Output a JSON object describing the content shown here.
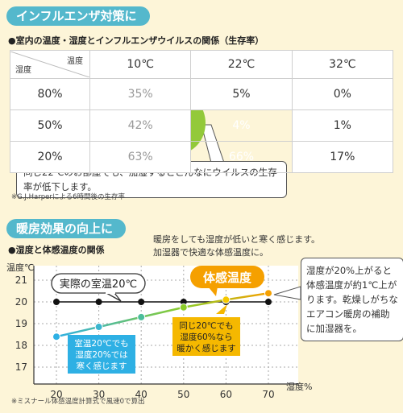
{
  "section1": {
    "heading": "インフルエンザ対策に",
    "subtitle": "●室内の温度・湿度とインフルエンザウイルスの関係（生存率）",
    "corner_top": "温度",
    "corner_bottom": "湿度",
    "columns": [
      "10℃",
      "22℃",
      "32℃"
    ],
    "rows": [
      {
        "label": "80%",
        "cells": [
          "35%",
          "5%",
          "0%"
        ]
      },
      {
        "label": "50%",
        "cells": [
          "42%",
          "4%",
          "1%"
        ]
      },
      {
        "label": "20%",
        "cells": [
          "63%",
          "66%",
          "17%"
        ]
      }
    ],
    "callout": "同じ22℃のお部屋でも、加湿するとこんなにウイルスの生存率が低下します。",
    "footnote": "※G.J.Harperによる6時間後の生存率"
  },
  "section2": {
    "heading": "暖房効果の向上に",
    "subtitle": "●湿度と体感温度の関係",
    "top_note": [
      "暖房をしても湿度が低いと寒く感じます。",
      "加湿器で快適な体感温度に。"
    ],
    "right_note": "湿度が20%上がると体感温度が約1℃上がります。乾燥しがちなエアコン暖房の補助に加湿器を。",
    "label_actual": "実際の室温20℃",
    "label_felt": "体感温度",
    "box_left": [
      "室温20℃でも",
      "湿度20%では",
      "寒く感じます"
    ],
    "box_mid": [
      "同じ20℃でも",
      "湿度60%なら",
      "暖かく感じます"
    ],
    "footnote": "※ミスナール体感温度計算式で風速0で算出",
    "colors": {
      "felt_line_start": "#2eb0e4",
      "felt_line_end": "#f5a000",
      "actual_line": "#111111"
    }
  },
  "chart_data": {
    "type": "line",
    "xlabel": "湿度%",
    "ylabel": "温度℃",
    "x": [
      20,
      30,
      40,
      50,
      60,
      70
    ],
    "xlim": [
      20,
      70
    ],
    "ylim": [
      17,
      21
    ],
    "yticks": [
      17,
      18,
      19,
      20,
      21
    ],
    "series": [
      {
        "values": [
          20,
          20,
          20,
          20,
          20,
          20
        ]
      },
      {
        "name": "体感温度",
        "values": [
          18.4,
          18.85,
          19.3,
          19.75,
          20.1,
          20.4
        ]
      }
    ]
  }
}
